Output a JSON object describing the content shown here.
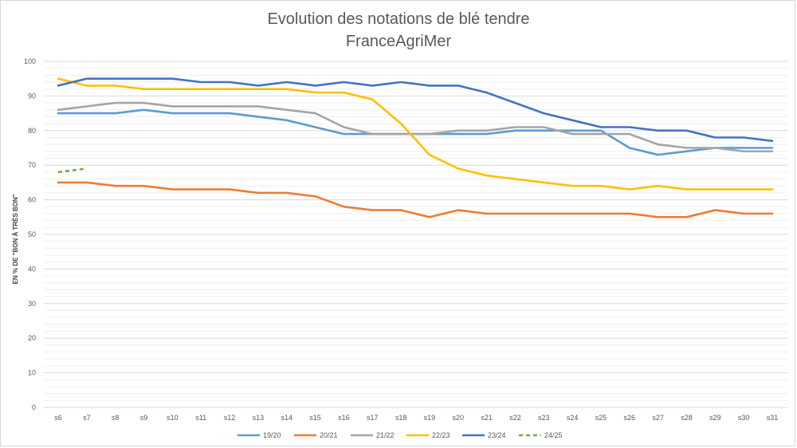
{
  "chart_data": {
    "type": "line",
    "title": "Evolution des notations de blé tendre",
    "subtitle": "FranceAgriMer",
    "ylabel": "EN % DE \"BON À TRÈS BON\"",
    "xlabel": "",
    "ylim": [
      0,
      100
    ],
    "yticks": [
      0,
      10,
      20,
      30,
      40,
      50,
      60,
      70,
      80,
      90,
      100
    ],
    "grid": true,
    "legend_position": "bottom",
    "categories": [
      "s6",
      "s7",
      "s8",
      "s9",
      "s10",
      "s11",
      "s12",
      "s13",
      "s14",
      "s15",
      "s16",
      "s17",
      "s18",
      "s19",
      "s20",
      "s21",
      "s22",
      "s23",
      "s24",
      "s25",
      "s26",
      "s27",
      "s28",
      "s29",
      "s30",
      "s31"
    ],
    "series": [
      {
        "name": "19/20",
        "color": "#5b9bd5",
        "dashed": false,
        "values": [
          85,
          85,
          85,
          86,
          85,
          85,
          85,
          84,
          83,
          81,
          79,
          79,
          79,
          79,
          79,
          79,
          80,
          80,
          80,
          80,
          75,
          73,
          74,
          75,
          75,
          75
        ]
      },
      {
        "name": "20/21",
        "color": "#ed7d31",
        "dashed": false,
        "values": [
          65,
          65,
          64,
          64,
          63,
          63,
          63,
          62,
          62,
          61,
          58,
          57,
          57,
          55,
          57,
          56,
          56,
          56,
          56,
          56,
          56,
          55,
          55,
          57,
          56,
          56
        ]
      },
      {
        "name": "21/22",
        "color": "#a5a5a5",
        "dashed": false,
        "values": [
          86,
          87,
          88,
          88,
          87,
          87,
          87,
          87,
          86,
          85,
          81,
          79,
          79,
          79,
          80,
          80,
          81,
          81,
          79,
          79,
          79,
          76,
          75,
          75,
          74,
          74
        ]
      },
      {
        "name": "22/23",
        "color": "#ffc000",
        "dashed": false,
        "values": [
          95,
          93,
          93,
          92,
          92,
          92,
          92,
          92,
          92,
          91,
          91,
          89,
          82,
          73,
          69,
          67,
          66,
          65,
          64,
          64,
          63,
          64,
          63,
          63,
          63,
          63
        ]
      },
      {
        "name": "23/24",
        "color": "#4472c4",
        "dashed": false,
        "values": [
          93,
          95,
          95,
          95,
          95,
          94,
          94,
          93,
          94,
          93,
          94,
          93,
          94,
          93,
          93,
          91,
          88,
          85,
          83,
          81,
          81,
          80,
          80,
          78,
          78,
          77
        ]
      },
      {
        "name": "24/25",
        "color": "#70ad47",
        "dashed": true,
        "values": [
          68,
          69,
          null,
          null,
          null,
          null,
          null,
          null,
          null,
          null,
          null,
          null,
          null,
          null,
          null,
          null,
          null,
          null,
          null,
          null,
          null,
          null,
          null,
          null,
          null,
          null
        ]
      }
    ]
  }
}
